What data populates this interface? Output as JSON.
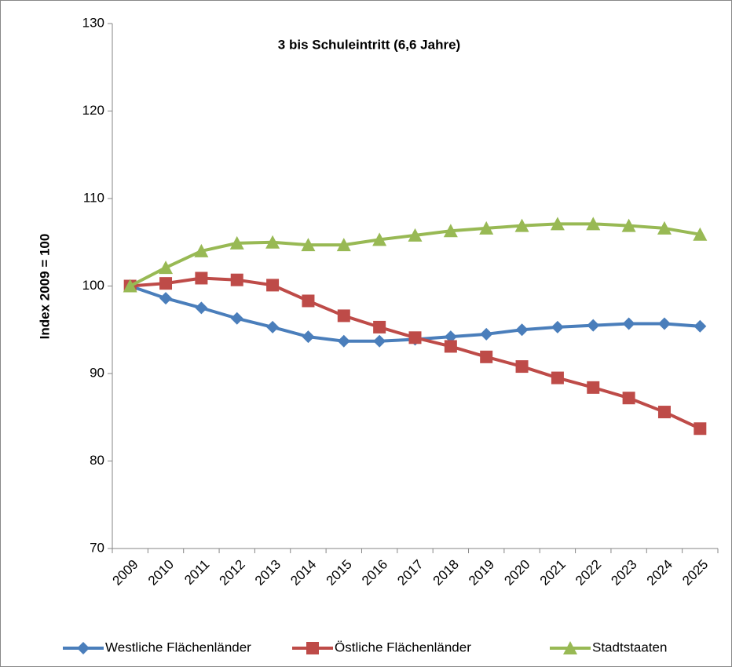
{
  "chart_data": {
    "type": "line",
    "title": "3 bis Schuleintritt (6,6 Jahre)",
    "y_label": "Index 2009 = 100",
    "categories": [
      "2009",
      "2010",
      "2011",
      "2012",
      "2013",
      "2014",
      "2015",
      "2016",
      "2017",
      "2018",
      "2019",
      "2020",
      "2021",
      "2022",
      "2023",
      "2024",
      "2025"
    ],
    "series": [
      {
        "name": "Westliche Flächenländer",
        "color": "#4a7ebb",
        "marker": "diamond",
        "values": [
          100,
          98.6,
          97.5,
          96.3,
          95.3,
          94.2,
          93.7,
          93.7,
          93.9,
          94.2,
          94.5,
          95.0,
          95.3,
          95.5,
          95.7,
          95.7,
          95.4
        ]
      },
      {
        "name": "Östliche Flächenländer",
        "color": "#be4b48",
        "marker": "square",
        "values": [
          100,
          100.3,
          100.9,
          100.7,
          100.1,
          98.3,
          96.6,
          95.3,
          94.1,
          93.1,
          91.9,
          90.8,
          89.5,
          88.4,
          87.2,
          85.6,
          83.7
        ]
      },
      {
        "name": "Stadtstaaten",
        "color": "#98b954",
        "marker": "triangle",
        "values": [
          100,
          102.1,
          104.0,
          104.9,
          105.0,
          104.7,
          104.7,
          105.3,
          105.8,
          106.3,
          106.6,
          106.9,
          107.1,
          107.1,
          106.9,
          106.6,
          105.9
        ]
      }
    ],
    "ylim": [
      70,
      130
    ],
    "yticks": [
      70,
      80,
      90,
      100,
      110,
      120,
      130
    ],
    "grid": false,
    "legend": "bottom"
  }
}
